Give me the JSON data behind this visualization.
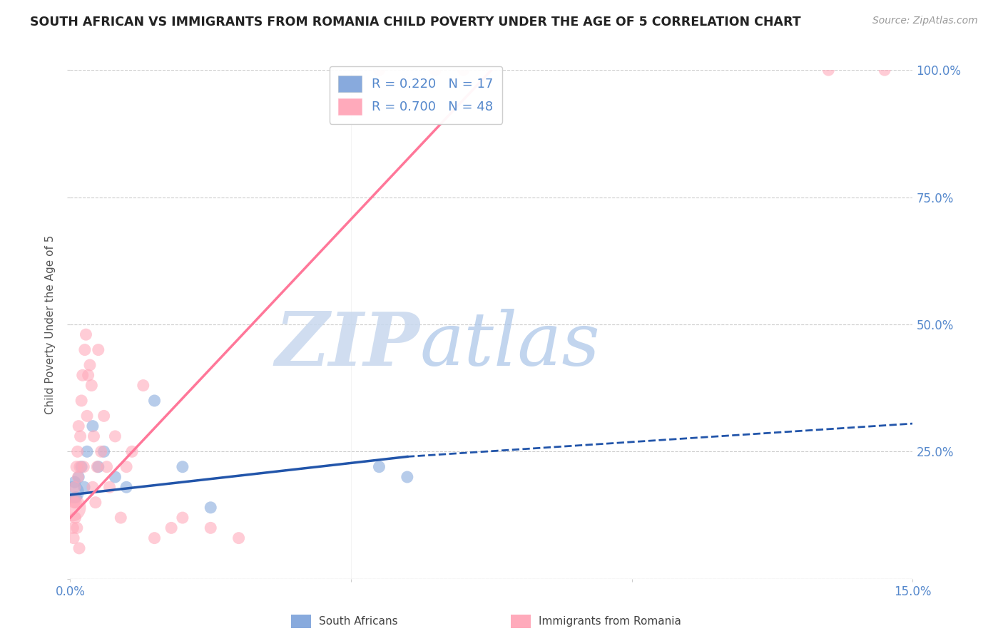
{
  "title": "SOUTH AFRICAN VS IMMIGRANTS FROM ROMANIA CHILD POVERTY UNDER THE AGE OF 5 CORRELATION CHART",
  "source": "Source: ZipAtlas.com",
  "ylabel": "Child Poverty Under the Age of 5",
  "xlim": [
    0.0,
    15.0
  ],
  "ylim": [
    0.0,
    100.0
  ],
  "yticks": [
    0,
    25,
    50,
    75,
    100
  ],
  "xticks": [
    0.0,
    5.0,
    10.0,
    15.0
  ],
  "watermark_zip": "ZIP",
  "watermark_atlas": "atlas",
  "legend_r_blue": "R = 0.220",
  "legend_n_blue": "N = 17",
  "legend_r_pink": "R = 0.700",
  "legend_n_pink": "N = 48",
  "blue_color": "#88AADD",
  "pink_color": "#FFAABB",
  "blue_line_color": "#2255AA",
  "pink_line_color": "#FF7799",
  "title_color": "#222222",
  "axis_label_color": "#5588CC",
  "grid_color": "#CCCCCC",
  "background_color": "#FFFFFF",
  "south_african_x": [
    0.05,
    0.08,
    0.1,
    0.15,
    0.2,
    0.25,
    0.3,
    0.4,
    0.5,
    0.6,
    0.8,
    1.0,
    1.5,
    2.0,
    2.5,
    5.5,
    6.0
  ],
  "south_african_y": [
    17,
    19,
    16,
    20,
    22,
    18,
    25,
    30,
    22,
    25,
    20,
    18,
    35,
    22,
    14,
    22,
    20
  ],
  "south_african_sizes": [
    500,
    150,
    150,
    150,
    150,
    150,
    150,
    150,
    150,
    150,
    150,
    150,
    150,
    150,
    150,
    150,
    150
  ],
  "romania_x": [
    0.03,
    0.05,
    0.06,
    0.07,
    0.08,
    0.09,
    0.1,
    0.11,
    0.12,
    0.13,
    0.14,
    0.15,
    0.16,
    0.17,
    0.18,
    0.2,
    0.22,
    0.24,
    0.26,
    0.28,
    0.3,
    0.32,
    0.35,
    0.38,
    0.4,
    0.42,
    0.45,
    0.48,
    0.5,
    0.55,
    0.6,
    0.65,
    0.7,
    0.8,
    0.9,
    1.0,
    1.1,
    1.3,
    1.5,
    1.8,
    2.0,
    2.5,
    3.0,
    5.5,
    6.5,
    7.0,
    13.5,
    14.5
  ],
  "romania_y": [
    14,
    10,
    8,
    15,
    18,
    12,
    15,
    22,
    10,
    25,
    20,
    30,
    6,
    22,
    28,
    35,
    40,
    22,
    45,
    48,
    32,
    40,
    42,
    38,
    18,
    28,
    15,
    22,
    45,
    25,
    32,
    22,
    18,
    28,
    12,
    22,
    25,
    38,
    8,
    10,
    12,
    10,
    8,
    100,
    100,
    100,
    100,
    100
  ],
  "romania_sizes": [
    800,
    150,
    150,
    150,
    150,
    150,
    150,
    150,
    150,
    150,
    150,
    150,
    150,
    150,
    150,
    150,
    150,
    150,
    150,
    150,
    150,
    150,
    150,
    150,
    150,
    150,
    150,
    150,
    150,
    150,
    150,
    150,
    150,
    150,
    150,
    150,
    150,
    150,
    150,
    150,
    150,
    150,
    150,
    150,
    150,
    150,
    150,
    150
  ],
  "blue_line_x0": 0.0,
  "blue_line_y0": 16.5,
  "blue_line_x1": 6.0,
  "blue_line_y1": 24.0,
  "blue_dash_x0": 6.0,
  "blue_dash_y0": 24.0,
  "blue_dash_x1": 15.0,
  "blue_dash_y1": 30.5,
  "pink_line_x0": 0.0,
  "pink_line_y0": 12.0,
  "pink_line_x1": 7.5,
  "pink_line_y1": 100.0
}
